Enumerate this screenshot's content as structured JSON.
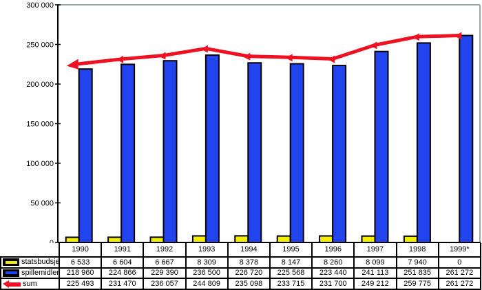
{
  "chart_data": {
    "type": "bar+line",
    "title": "",
    "xlabel": "",
    "ylabel": "",
    "categories": [
      "1990",
      "1991",
      "1992",
      "1993",
      "1994",
      "1995",
      "1996",
      "1997",
      "1998",
      "1999*"
    ],
    "series": [
      {
        "name": "statsbudsjett",
        "type": "bar",
        "color": "#f2ee00",
        "values": [
          6533,
          6604,
          6667,
          8309,
          8378,
          8147,
          8260,
          8099,
          7940,
          0
        ]
      },
      {
        "name": "spillemidler",
        "type": "bar",
        "color": "#2244ee",
        "values": [
          218960,
          224866,
          229390,
          236500,
          226720,
          225568,
          223440,
          241113,
          251835,
          261272
        ]
      },
      {
        "name": "sum",
        "type": "line",
        "color": "#ee1122",
        "values": [
          225493,
          231470,
          236057,
          244809,
          235098,
          233715,
          231700,
          249212,
          259775,
          261272
        ]
      }
    ],
    "ylim": [
      0,
      300000
    ],
    "ytick_step": 50000,
    "ytick_labels": [
      "0",
      "50 000",
      "100 000",
      "150 000",
      "200 000",
      "250 000",
      "300 000"
    ],
    "grid": false,
    "legend_position": "table-left-column",
    "colors": {
      "plot_border": "#9aa8a2",
      "axis": "#000000",
      "background": "#ffffff"
    }
  },
  "table": {
    "year_header": [
      "1990",
      "1991",
      "1992",
      "1993",
      "1994",
      "1995",
      "1996",
      "1997",
      "1998",
      "1999*"
    ],
    "rows": [
      {
        "legend": "statsbudsjett",
        "icon": "yellow-bar-icon",
        "icon_color": "#f2ee00",
        "values": [
          "6 533",
          "6 604",
          "6 667",
          "8 309",
          "8 378",
          "8 147",
          "8 260",
          "8 099",
          "7 940",
          "0"
        ]
      },
      {
        "legend": "spillemidler",
        "icon": "blue-bar-icon",
        "icon_color": "#2244ee",
        "values": [
          "218 960",
          "224 866",
          "229 390",
          "236 500",
          "226 720",
          "225 568",
          "223 440",
          "241 113",
          "251 835",
          "261 272"
        ]
      },
      {
        "legend": "sum",
        "icon": "red-arrow-icon",
        "icon_color": "#ee1122",
        "values": [
          "225 493",
          "231 470",
          "236 057",
          "244 809",
          "235 098",
          "233 715",
          "231 700",
          "249 212",
          "259 775",
          "261 272"
        ]
      }
    ]
  }
}
